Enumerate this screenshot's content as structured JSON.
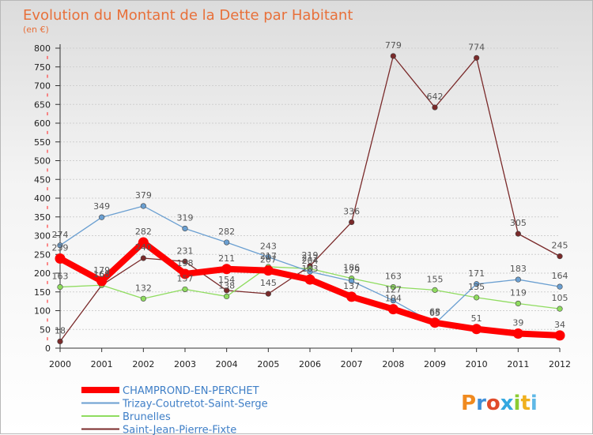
{
  "chart_data": {
    "type": "line",
    "title": "Evolution du Montant de la Dette par Habitant",
    "subtitle": "(en €)",
    "ylim": [
      0,
      800
    ],
    "yticks": [
      0,
      50,
      100,
      150,
      200,
      250,
      300,
      350,
      400,
      450,
      500,
      550,
      600,
      650,
      700,
      750,
      800
    ],
    "x": [
      "2000",
      "2001",
      "2002",
      "2003",
      "2004",
      "2005",
      "2006",
      "2007",
      "2008",
      "2009",
      "2010",
      "2011",
      "2012"
    ],
    "grid": "horizontal",
    "legend_position": "bottom-left",
    "series": [
      {
        "name": "CHAMPROND-EN-PERCHET",
        "color": "#ff0000",
        "width": 8,
        "values": [
          239,
          179,
          282,
          198,
          211,
          207,
          183,
          137,
          104,
          68,
          51,
          39,
          34
        ],
        "labels": [
          "239",
          "179",
          "282",
          "198",
          "211",
          "207",
          "183",
          "137",
          "104",
          "68",
          "51",
          "39",
          "34"
        ]
      },
      {
        "name": "Trizay-Coutretot-Saint-Serge",
        "color": "#6a9fd1",
        "width": 1.3,
        "values": [
          274,
          349,
          379,
          319,
          282,
          243,
          204,
          179,
          127,
          65,
          171,
          183,
          164
        ],
        "labels": [
          "274",
          "349",
          "379",
          "319",
          "282",
          "243",
          "204",
          "179",
          "127",
          "65",
          "171",
          "183",
          "164"
        ]
      },
      {
        "name": "Brunelles",
        "color": "#8fdc5f",
        "width": 1.3,
        "values": [
          163,
          168,
          132,
          157,
          138,
          217,
          212,
          186,
          163,
          155,
          135,
          119,
          105
        ],
        "labels": [
          "163",
          "168",
          "132",
          "157",
          "138",
          "217",
          "212",
          "186",
          "163",
          "155",
          "135",
          "119",
          "105"
        ]
      },
      {
        "name": "Saint-Jean-Pierre-Fixte",
        "color": "#7a2a2a",
        "width": 1.3,
        "values": [
          18,
          168,
          240,
          231,
          154,
          145,
          219,
          336,
          779,
          642,
          774,
          305,
          245
        ],
        "labels": [
          "18",
          "168",
          "240",
          "231",
          "154",
          "145",
          "219",
          "336",
          "779",
          "642",
          "774",
          "305",
          "245"
        ]
      }
    ]
  },
  "logo": {
    "text": "Proxiti"
  }
}
